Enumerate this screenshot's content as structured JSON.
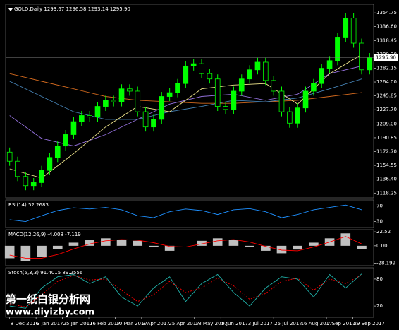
{
  "chart_data": [
    {
      "type": "candlestick",
      "label": "GOLD,Daily 1293.67 1296.58 1293.14 1295.90",
      "up_color": "#00ff00",
      "down_color": "#000000",
      "xlim": [
        -0.5,
        45.5
      ],
      "xticks": [
        {
          "value": 0,
          "label": "8 Dec 2016"
        },
        {
          "value": 3.3,
          "label": "3 Jan 2017"
        },
        {
          "value": 6.6,
          "label": "25 Jan 2017"
        },
        {
          "value": 9.9,
          "label": "16 Feb 2017"
        },
        {
          "value": 13.2,
          "label": "10 Mar 2017"
        },
        {
          "value": 16.5,
          "label": "3 Apr 2017"
        },
        {
          "value": 19.8,
          "label": "25 Apr 2017"
        },
        {
          "value": 23.1,
          "label": "18 May 2017"
        },
        {
          "value": 26.4,
          "label": "9 Jun 2017"
        },
        {
          "value": 29.7,
          "label": "3 Jul 2017"
        },
        {
          "value": 33,
          "label": "25 Jul 2017"
        },
        {
          "value": 36.3,
          "label": "16 Aug 2017"
        },
        {
          "value": 39.6,
          "label": "7 Sep 2017"
        },
        {
          "value": 42.9,
          "label": "29 Sep 2017"
        }
      ],
      "ylim": [
        1112,
        1366
      ],
      "yticks": [
        1354.75,
        {
          "value": 1336.6,
          "label": "1336.60"
        },
        {
          "value": 1318.45,
          "label": "1318.45"
        },
        {
          "value": 1300.3,
          "label": "1300.30"
        },
        {
          "value": 1282.15,
          "label": "1282.15"
        },
        {
          "value": 1264,
          "label": "1264.00"
        },
        {
          "value": 1245.85,
          "label": "1245.85"
        },
        {
          "value": 1227.7,
          "label": "1227.70"
        },
        {
          "value": 1209,
          "label": "1209.00"
        },
        {
          "value": 1190.85,
          "label": "1190.85"
        },
        {
          "value": 1172.7,
          "label": "1172.70"
        },
        {
          "value": 1154.55,
          "label": "1154.55"
        },
        {
          "value": 1136.4,
          "label": "1136.40"
        },
        1118.25
      ],
      "last_price": {
        "value": 1295.9,
        "label": "1295.90"
      },
      "open": [
        1172,
        1160,
        1140,
        1128,
        1132,
        1148,
        1165,
        1180,
        1195,
        1212,
        1220,
        1218,
        1232,
        1240,
        1238,
        1255,
        1252,
        1225,
        1205,
        1215,
        1245,
        1250,
        1262,
        1285,
        1288,
        1275,
        1268,
        1232,
        1228,
        1252,
        1268,
        1280,
        1290,
        1266,
        1252,
        1225,
        1210,
        1230,
        1252,
        1262,
        1282,
        1292,
        1322,
        1348,
        1315,
        1280
      ],
      "high": [
        1178,
        1166,
        1146,
        1138,
        1154,
        1171,
        1186,
        1201,
        1218,
        1226,
        1226,
        1238,
        1246,
        1246,
        1261,
        1261,
        1258,
        1231,
        1221,
        1251,
        1256,
        1268,
        1291,
        1294,
        1294,
        1281,
        1274,
        1238,
        1258,
        1274,
        1286,
        1296,
        1296,
        1272,
        1258,
        1231,
        1236,
        1258,
        1268,
        1288,
        1298,
        1328,
        1354,
        1354,
        1321,
        1302
      ],
      "low": [
        1154,
        1134,
        1122,
        1122,
        1126,
        1142,
        1159,
        1174,
        1189,
        1206,
        1212,
        1212,
        1226,
        1232,
        1232,
        1246,
        1219,
        1199,
        1199,
        1209,
        1239,
        1244,
        1256,
        1279,
        1269,
        1262,
        1226,
        1222,
        1222,
        1246,
        1262,
        1274,
        1260,
        1246,
        1219,
        1204,
        1204,
        1224,
        1246,
        1256,
        1276,
        1286,
        1316,
        1309,
        1274,
        1274
      ],
      "close": [
        1160,
        1140,
        1128,
        1132,
        1148,
        1165,
        1180,
        1195,
        1212,
        1220,
        1218,
        1232,
        1240,
        1238,
        1255,
        1252,
        1225,
        1205,
        1215,
        1245,
        1250,
        1262,
        1285,
        1288,
        1275,
        1268,
        1232,
        1228,
        1252,
        1268,
        1280,
        1290,
        1266,
        1252,
        1225,
        1210,
        1230,
        1252,
        1262,
        1282,
        1292,
        1322,
        1348,
        1315,
        1280,
        1295.9
      ],
      "series": [
        {
          "color": "#d2691e",
          "x": [
            0,
            4,
            8,
            12,
            16,
            20,
            24,
            28,
            32,
            36,
            40,
            44
          ],
          "values": [
            1275,
            1265,
            1255,
            1245,
            1240,
            1238,
            1236,
            1236,
            1238,
            1240,
            1245,
            1250
          ]
        },
        {
          "color": "#4682b4",
          "x": [
            0,
            4,
            8,
            12,
            16,
            20,
            24,
            28,
            32,
            36,
            40,
            44
          ],
          "values": [
            1265,
            1245,
            1225,
            1215,
            1215,
            1225,
            1232,
            1240,
            1238,
            1243,
            1255,
            1268
          ]
        },
        {
          "color": "#9370db",
          "x": [
            0,
            4,
            8,
            12,
            16,
            20,
            24,
            28,
            32,
            36,
            40,
            44
          ],
          "values": [
            1220,
            1190,
            1180,
            1195,
            1215,
            1235,
            1245,
            1248,
            1240,
            1248,
            1275,
            1285
          ]
        },
        {
          "color": "#f0e68c",
          "x": [
            0,
            4,
            8,
            12,
            16,
            20,
            24,
            28,
            32,
            36,
            40,
            44
          ],
          "values": [
            1150,
            1138,
            1170,
            1205,
            1232,
            1225,
            1255,
            1260,
            1262,
            1235,
            1275,
            1300
          ]
        }
      ]
    },
    {
      "type": "line",
      "label": "RSI(14) 52.2683",
      "ylim": [
        15,
        85
      ],
      "yticks": [
        70,
        30
      ],
      "series": [
        {
          "color": "#1e90ff",
          "x": [
            0,
            2,
            4,
            6,
            8,
            10,
            12,
            14,
            16,
            18,
            20,
            22,
            24,
            26,
            28,
            30,
            32,
            34,
            36,
            38,
            40,
            42,
            44
          ],
          "values": [
            35,
            30,
            45,
            58,
            65,
            62,
            66,
            60,
            45,
            40,
            55,
            62,
            58,
            48,
            60,
            63,
            55,
            40,
            48,
            60,
            66,
            72,
            60
          ]
        }
      ]
    },
    {
      "type": "macd",
      "label": "MACD(12,26,9) -4.008 -7.119",
      "ylim": [
        -32,
        26
      ],
      "yticks": [
        22.52,
        {
          "value": 0,
          "label": "0.00"
        },
        -28.199
      ],
      "bar_color": "#c0c0c0",
      "x": [
        0,
        2,
        4,
        6,
        8,
        10,
        12,
        14,
        16,
        18,
        20,
        22,
        24,
        26,
        28,
        30,
        32,
        34,
        36,
        38,
        40,
        42,
        44
      ],
      "histogram": [
        -20,
        -25,
        -18,
        -5,
        5,
        10,
        12,
        10,
        8,
        -2,
        -8,
        0,
        8,
        12,
        10,
        -2,
        -8,
        -12,
        -6,
        5,
        12,
        20,
        -5
      ],
      "series": [
        {
          "color": "#ff0000",
          "x": [
            0,
            2,
            4,
            6,
            8,
            10,
            12,
            14,
            16,
            18,
            20,
            22,
            24,
            26,
            28,
            30,
            32,
            34,
            36,
            38,
            40,
            42,
            44
          ],
          "values": [
            -15,
            -20,
            -20,
            -14,
            -5,
            3,
            8,
            10,
            9,
            5,
            -1,
            -2,
            3,
            8,
            10,
            6,
            -1,
            -7,
            -8,
            -2,
            6,
            15,
            3
          ]
        }
      ]
    },
    {
      "type": "line",
      "label": "Stoch(5,3,3) 91.4015 89.2556",
      "ylim": [
        -5,
        105
      ],
      "yticks": [
        80,
        20
      ],
      "series": [
        {
          "color": "#20b2aa",
          "x": [
            0,
            2,
            4,
            6,
            8,
            10,
            12,
            14,
            16,
            18,
            20,
            22,
            24,
            26,
            28,
            30,
            32,
            34,
            36,
            38,
            40,
            42,
            44
          ],
          "values": [
            20,
            15,
            60,
            85,
            90,
            70,
            85,
            40,
            20,
            60,
            85,
            30,
            70,
            90,
            50,
            20,
            60,
            85,
            80,
            40,
            90,
            60,
            91.4
          ]
        },
        {
          "color": "#ff0000",
          "dashed": true,
          "x": [
            0,
            2,
            4,
            6,
            8,
            10,
            12,
            14,
            16,
            18,
            20,
            22,
            24,
            26,
            28,
            30,
            32,
            34,
            36,
            38,
            40,
            42,
            44
          ],
          "values": [
            25,
            18,
            45,
            75,
            88,
            78,
            80,
            55,
            30,
            45,
            75,
            50,
            60,
            82,
            65,
            35,
            48,
            75,
            82,
            55,
            80,
            70,
            89.3
          ]
        }
      ]
    }
  ],
  "watermark": {
    "title": "第一纸白银分析网",
    "url": "www.diyizby.com"
  }
}
